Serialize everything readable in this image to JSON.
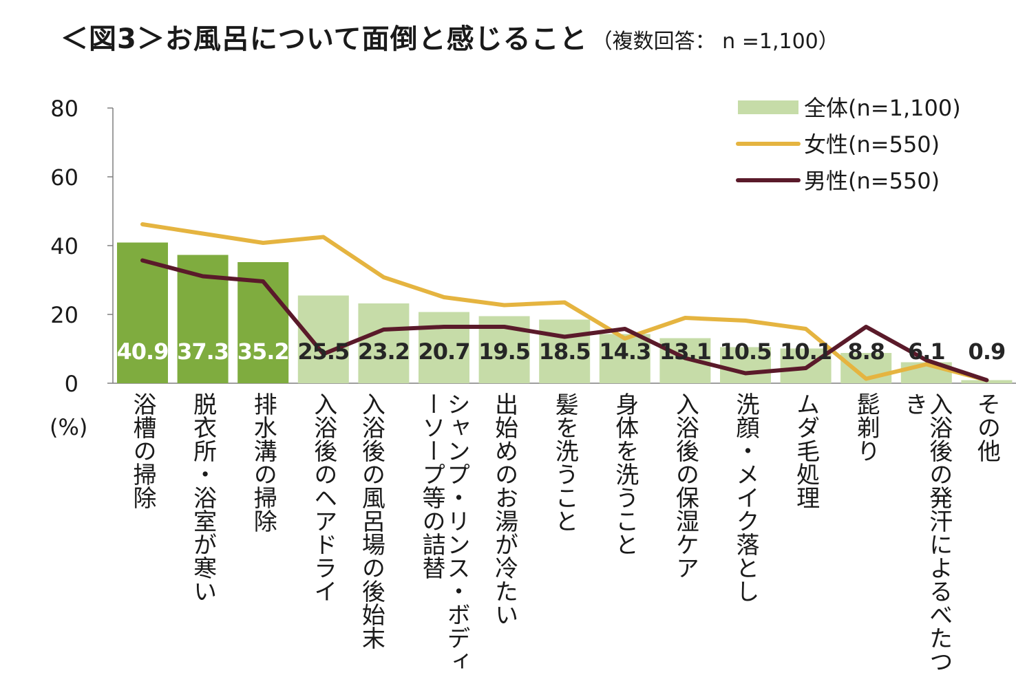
{
  "title": "＜図3＞お風呂について面倒と感じること",
  "title_note": "（複数回答： n =1,100）",
  "chart_data": {
    "type": "bar",
    "title": "＜図3＞お風呂について面倒と感じること",
    "ylabel": "(%)",
    "ylim": [
      0,
      80
    ],
    "yticks": [
      0,
      20,
      40,
      60,
      80
    ],
    "categories": [
      "浴槽の掃除",
      "脱衣所・浴室が寒い",
      "排水溝の掃除",
      "入浴後のヘアドライ",
      "入浴後の風呂場の後始末",
      "シャンプ・リンス・ボディーソープ等の詰替",
      "出始めのお湯が冷たい",
      "髪を洗うこと",
      "身体を洗うこと",
      "入浴後の保湿ケア",
      "洗顔・メイク落とし",
      "ムダ毛処理",
      "髭剃り",
      "入浴後の発汗によるべたつき",
      "その他"
    ],
    "series": [
      {
        "name": "全体(n=1,100)",
        "kind": "bar",
        "values": [
          40.9,
          37.3,
          35.2,
          25.5,
          23.2,
          20.7,
          19.5,
          18.5,
          14.3,
          13.1,
          10.5,
          10.1,
          8.8,
          6.1,
          0.9
        ],
        "value_labels": [
          "40.9",
          "37.3",
          "35.2",
          "25.5",
          "23.2",
          "20.7",
          "19.5",
          "18.5",
          "14.3",
          "13.1",
          "10.5",
          "10.1",
          "8.8",
          "6.1",
          "0.9"
        ],
        "highlight_count": 3,
        "highlight_color": "#7fac3f",
        "color": "#c6dca8"
      },
      {
        "name": "女性(n=550)",
        "kind": "line",
        "color": "#e5b440",
        "values": [
          46.2,
          43.5,
          40.8,
          42.5,
          30.8,
          25.0,
          22.7,
          23.5,
          13.0,
          19.0,
          18.2,
          15.8,
          1.3,
          5.5,
          0.9
        ]
      },
      {
        "name": "男性(n=550)",
        "kind": "line",
        "color": "#5a1a2a",
        "values": [
          35.7,
          31.1,
          29.6,
          8.5,
          15.6,
          16.4,
          16.4,
          13.5,
          15.8,
          7.3,
          2.9,
          4.4,
          16.4,
          6.7,
          0.9
        ]
      }
    ]
  }
}
